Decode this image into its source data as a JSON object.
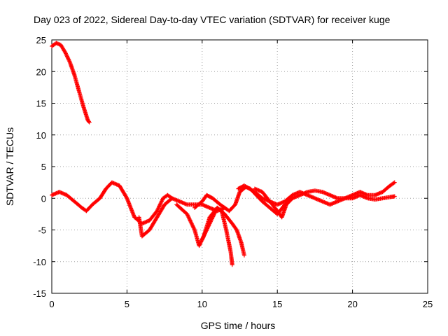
{
  "chart_data": {
    "type": "scatter",
    "title": "Day 023 of 2022, Sidereal Day-to-day VTEC variation (SDTVAR) for receiver kuge",
    "xlabel": "GPS time / hours",
    "ylabel": "SDTVAR / TECUs",
    "xlim": [
      0,
      25
    ],
    "ylim": [
      -15,
      25
    ],
    "xticks": [
      0,
      5,
      10,
      15,
      20,
      25
    ],
    "yticks": [
      -15,
      -10,
      -5,
      0,
      5,
      10,
      15,
      20,
      25
    ],
    "grid": true,
    "marker": "+",
    "color": "#ff0000",
    "series": [
      {
        "name": "arc-high",
        "points": [
          [
            0,
            24
          ],
          [
            0.3,
            24.5
          ],
          [
            0.6,
            24.2
          ],
          [
            0.9,
            23
          ],
          [
            1.2,
            21.5
          ],
          [
            1.5,
            19.5
          ],
          [
            1.8,
            17
          ],
          [
            2.1,
            14.5
          ],
          [
            2.4,
            12.3
          ],
          [
            2.5,
            12
          ]
        ]
      },
      {
        "name": "arc-a",
        "points": [
          [
            0,
            0.5
          ],
          [
            0.5,
            1
          ],
          [
            1,
            0.5
          ],
          [
            1.5,
            -0.5
          ],
          [
            2,
            -1.5
          ],
          [
            2.3,
            -2
          ],
          [
            2.7,
            -1
          ],
          [
            3.2,
            0
          ],
          [
            3.6,
            1.5
          ],
          [
            4,
            2.5
          ],
          [
            4.5,
            2
          ],
          [
            5,
            0
          ],
          [
            5.5,
            -3
          ],
          [
            6,
            -4
          ],
          [
            6.5,
            -3.5
          ],
          [
            7,
            -2
          ],
          [
            7.4,
            0
          ],
          [
            7.7,
            0.5
          ],
          [
            8,
            0
          ],
          [
            8.5,
            -0.5
          ],
          [
            9,
            -1
          ],
          [
            9.5,
            -1
          ],
          [
            10,
            -1
          ],
          [
            10.5,
            -1.5
          ],
          [
            11,
            -2
          ],
          [
            11.5,
            -1.5
          ]
        ]
      },
      {
        "name": "arc-b",
        "points": [
          [
            5.8,
            -3
          ],
          [
            6,
            -6
          ],
          [
            6.5,
            -5
          ],
          [
            7,
            -3
          ],
          [
            7.5,
            -1
          ],
          [
            8,
            0
          ]
        ]
      },
      {
        "name": "arc-c",
        "points": [
          [
            8.3,
            -1
          ],
          [
            9,
            -2.5
          ],
          [
            9.5,
            -5
          ],
          [
            9.8,
            -7.5
          ],
          [
            10.1,
            -6
          ],
          [
            10.5,
            -3
          ],
          [
            11,
            -1.5
          ],
          [
            11.5,
            -2.5
          ],
          [
            12,
            -4
          ],
          [
            12.3,
            -5
          ],
          [
            12.6,
            -7
          ],
          [
            12.8,
            -9
          ]
        ]
      },
      {
        "name": "arc-d",
        "points": [
          [
            10,
            -6.5
          ],
          [
            10.5,
            -4
          ],
          [
            11,
            -1.5
          ],
          [
            11.3,
            -2
          ],
          [
            11.6,
            -5
          ],
          [
            11.9,
            -8.5
          ],
          [
            12,
            -10.5
          ]
        ]
      },
      {
        "name": "arc-e",
        "points": [
          [
            9.5,
            -1.5
          ],
          [
            10,
            -0.5
          ],
          [
            10.3,
            0.5
          ],
          [
            10.7,
            0
          ],
          [
            11.2,
            -1
          ],
          [
            11.8,
            -2
          ],
          [
            12.2,
            -1
          ],
          [
            12.5,
            1
          ],
          [
            12.9,
            1.8
          ],
          [
            13.2,
            1.5
          ],
          [
            13.6,
            0.5
          ],
          [
            14,
            -0.5
          ],
          [
            14.5,
            -1.5
          ],
          [
            15,
            -2.5
          ],
          [
            15.5,
            -1
          ],
          [
            16,
            0
          ],
          [
            16.5,
            0.5
          ],
          [
            17,
            1
          ],
          [
            17.5,
            1.2
          ],
          [
            18,
            1
          ],
          [
            18.5,
            0.5
          ],
          [
            19,
            0
          ],
          [
            19.5,
            0
          ],
          [
            20,
            0.5
          ],
          [
            20.5,
            1
          ],
          [
            21,
            0.5
          ],
          [
            21.5,
            0.5
          ],
          [
            22,
            1
          ],
          [
            22.5,
            2
          ],
          [
            22.8,
            2.5
          ]
        ]
      },
      {
        "name": "arc-f",
        "points": [
          [
            12.4,
            1.5
          ],
          [
            12.8,
            2
          ],
          [
            13.5,
            1
          ],
          [
            14,
            0
          ],
          [
            14.5,
            -0.5
          ],
          [
            15,
            -1
          ],
          [
            15.5,
            -0.5
          ],
          [
            16,
            0.5
          ],
          [
            16.5,
            1
          ],
          [
            17,
            0.5
          ],
          [
            17.5,
            0
          ],
          [
            18,
            -0.5
          ],
          [
            18.5,
            -1
          ],
          [
            19,
            -0.5
          ],
          [
            19.5,
            0
          ],
          [
            20,
            0
          ],
          [
            20.5,
            0.5
          ],
          [
            21,
            0
          ],
          [
            21.5,
            -0.2
          ],
          [
            22,
            0
          ],
          [
            22.5,
            0.2
          ],
          [
            22.8,
            0.3
          ]
        ]
      },
      {
        "name": "arc-g",
        "points": [
          [
            13.5,
            1.5
          ],
          [
            14,
            1
          ],
          [
            14.5,
            -0.5
          ],
          [
            15,
            -2
          ],
          [
            15.3,
            -3
          ],
          [
            15.6,
            -1
          ],
          [
            16,
            0
          ]
        ]
      }
    ]
  }
}
